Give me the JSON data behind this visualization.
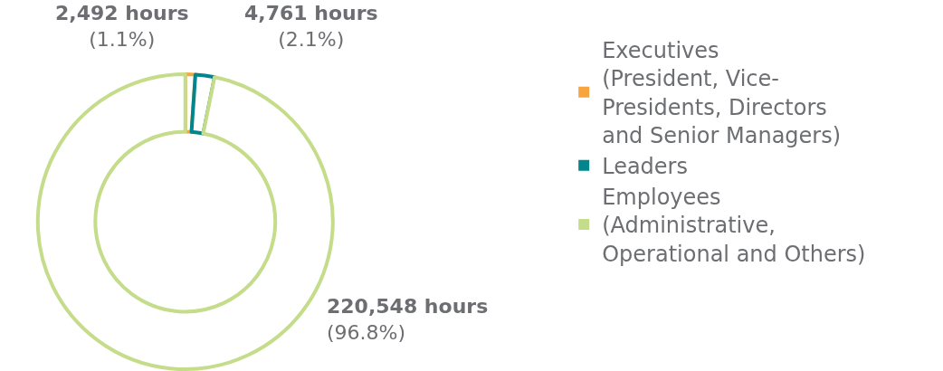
{
  "chart_data": {
    "type": "donut",
    "categories": [
      "Executives\n(President, Vice-\nPresidents, Directors\nand Senior Managers)",
      "Leaders",
      "Employees\n(Administrative,\nOperational and Others)"
    ],
    "values": [
      2492,
      4761,
      220548
    ],
    "colors": [
      "#f7a541",
      "#00868b",
      "#c5dc8a"
    ],
    "value_labels": [
      "2,492 hours\n(1.1%)",
      "4,761 hours\n(2.1%)",
      "220,548 hours\n(96.8%)"
    ],
    "legend": "right"
  }
}
